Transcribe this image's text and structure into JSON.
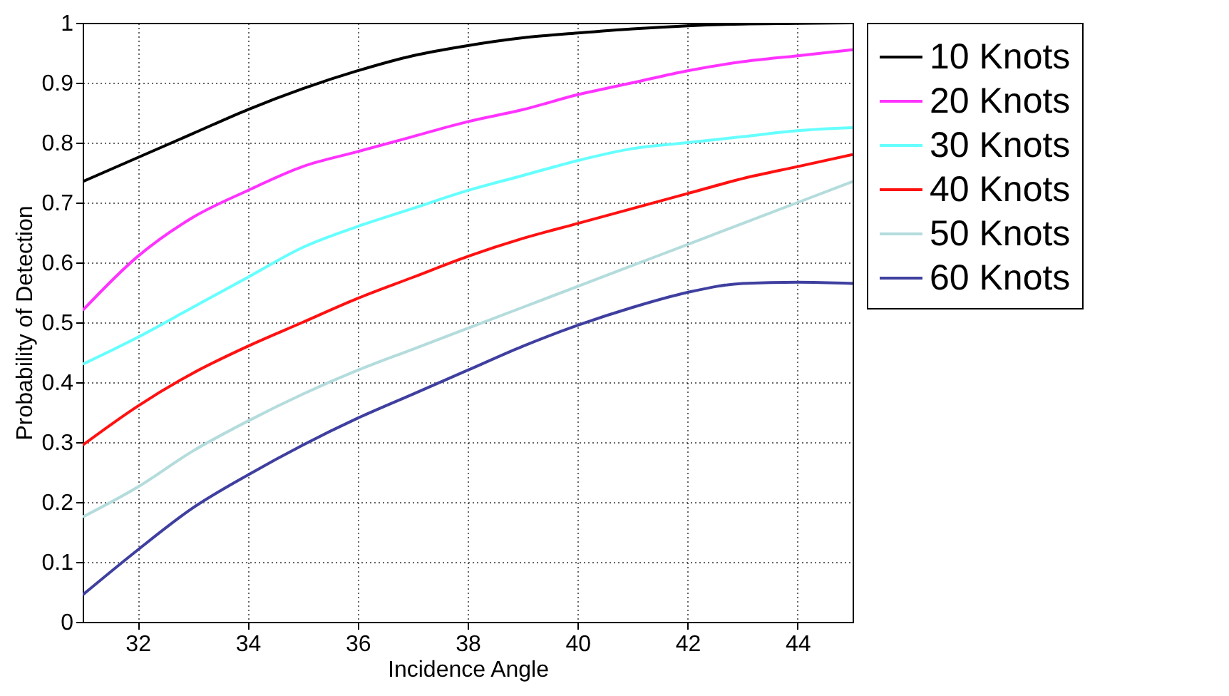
{
  "chart_data": {
    "type": "line",
    "xlabel": "Incidence Angle",
    "ylabel": "Probability of Detection",
    "x": [
      31,
      32,
      33,
      34,
      35,
      36,
      37,
      38,
      39,
      40,
      41,
      42,
      43,
      44,
      45
    ],
    "series": [
      {
        "name": "10 Knots",
        "color": "#000000",
        "values": [
          0.735,
          0.775,
          0.815,
          0.855,
          0.89,
          0.92,
          0.945,
          0.962,
          0.975,
          0.983,
          0.99,
          0.995,
          0.998,
          0.999,
          1.0
        ]
      },
      {
        "name": "20 Knots",
        "color": "#ff33ff",
        "values": [
          0.52,
          0.61,
          0.675,
          0.72,
          0.76,
          0.785,
          0.81,
          0.835,
          0.855,
          0.88,
          0.9,
          0.92,
          0.935,
          0.945,
          0.955
        ]
      },
      {
        "name": "30 Knots",
        "color": "#66ffff",
        "values": [
          0.43,
          0.475,
          0.525,
          0.575,
          0.625,
          0.66,
          0.69,
          0.72,
          0.745,
          0.77,
          0.79,
          0.8,
          0.81,
          0.82,
          0.825
        ]
      },
      {
        "name": "40 Knots",
        "color": "#ff1111",
        "values": [
          0.295,
          0.36,
          0.415,
          0.46,
          0.5,
          0.54,
          0.575,
          0.61,
          0.64,
          0.665,
          0.69,
          0.715,
          0.74,
          0.76,
          0.78
        ]
      },
      {
        "name": "50 Knots",
        "color": "#b4dcdc",
        "values": [
          0.175,
          0.225,
          0.285,
          0.335,
          0.38,
          0.42,
          0.455,
          0.49,
          0.525,
          0.56,
          0.595,
          0.63,
          0.665,
          0.7,
          0.735
        ]
      },
      {
        "name": "60 Knots",
        "color": "#3f3fa0",
        "values": [
          0.045,
          0.12,
          0.19,
          0.245,
          0.295,
          0.34,
          0.38,
          0.42,
          0.46,
          0.495,
          0.525,
          0.55,
          0.565,
          0.567,
          0.565
        ]
      }
    ],
    "xlim": [
      31,
      45
    ],
    "xticks": [
      32,
      34,
      36,
      38,
      40,
      42,
      44
    ],
    "ylim": [
      0,
      1
    ],
    "yticks": [
      {
        "value": 0,
        "label": "0"
      },
      0.1,
      0.2,
      0.3,
      0.4,
      0.5,
      0.6,
      0.7,
      0.8,
      0.9,
      {
        "value": 1,
        "label": "1"
      }
    ],
    "grid": true,
    "legend": "top right",
    "line_style": "solid",
    "marker": "none"
  }
}
